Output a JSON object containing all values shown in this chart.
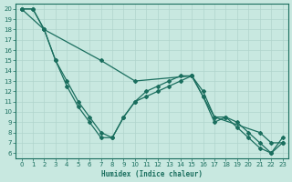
{
  "xlabel": "Humidex (Indice chaleur)",
  "ylabel": "",
  "xlim": [
    -0.5,
    23.5
  ],
  "ylim": [
    5.5,
    20.5
  ],
  "yticks": [
    6,
    7,
    8,
    9,
    10,
    11,
    12,
    13,
    14,
    15,
    16,
    17,
    18,
    19,
    20
  ],
  "xticks": [
    0,
    1,
    2,
    3,
    4,
    5,
    6,
    7,
    8,
    9,
    10,
    11,
    12,
    13,
    14,
    15,
    16,
    17,
    18,
    19,
    20,
    21,
    22,
    23
  ],
  "background_color": "#c8e8e0",
  "grid_color": "#b0d4cc",
  "line_color": "#1a6e5e",
  "line1_x": [
    0,
    1,
    2,
    3,
    4,
    5,
    6,
    7,
    8,
    9,
    10,
    11,
    12,
    13,
    14,
    15,
    16,
    17,
    18,
    19,
    20,
    21,
    22,
    23
  ],
  "line1_y": [
    20,
    20,
    18,
    15,
    13,
    11,
    9.5,
    8,
    7.5,
    9.5,
    11,
    12,
    12.5,
    13,
    13.5,
    13.5,
    11.5,
    9.5,
    9.5,
    9,
    8,
    7,
    6,
    7.5
  ],
  "line2_x": [
    0,
    2,
    7,
    10,
    15,
    16,
    17,
    21,
    22,
    23
  ],
  "line2_y": [
    20,
    18,
    15,
    13,
    13.5,
    12,
    9.5,
    8,
    7,
    7
  ],
  "line3_x": [
    0,
    1,
    2,
    3,
    4,
    5,
    6,
    7,
    8,
    9,
    10,
    11,
    12,
    13,
    14,
    15,
    16,
    17,
    18,
    19,
    20,
    21,
    22,
    23
  ],
  "line3_y": [
    20,
    20,
    18,
    15,
    12.5,
    10.5,
    9,
    7.5,
    7.5,
    9.5,
    11,
    11.5,
    12,
    12.5,
    13,
    13.5,
    11.5,
    9,
    9.5,
    8.5,
    7.5,
    6.5,
    6,
    7
  ]
}
